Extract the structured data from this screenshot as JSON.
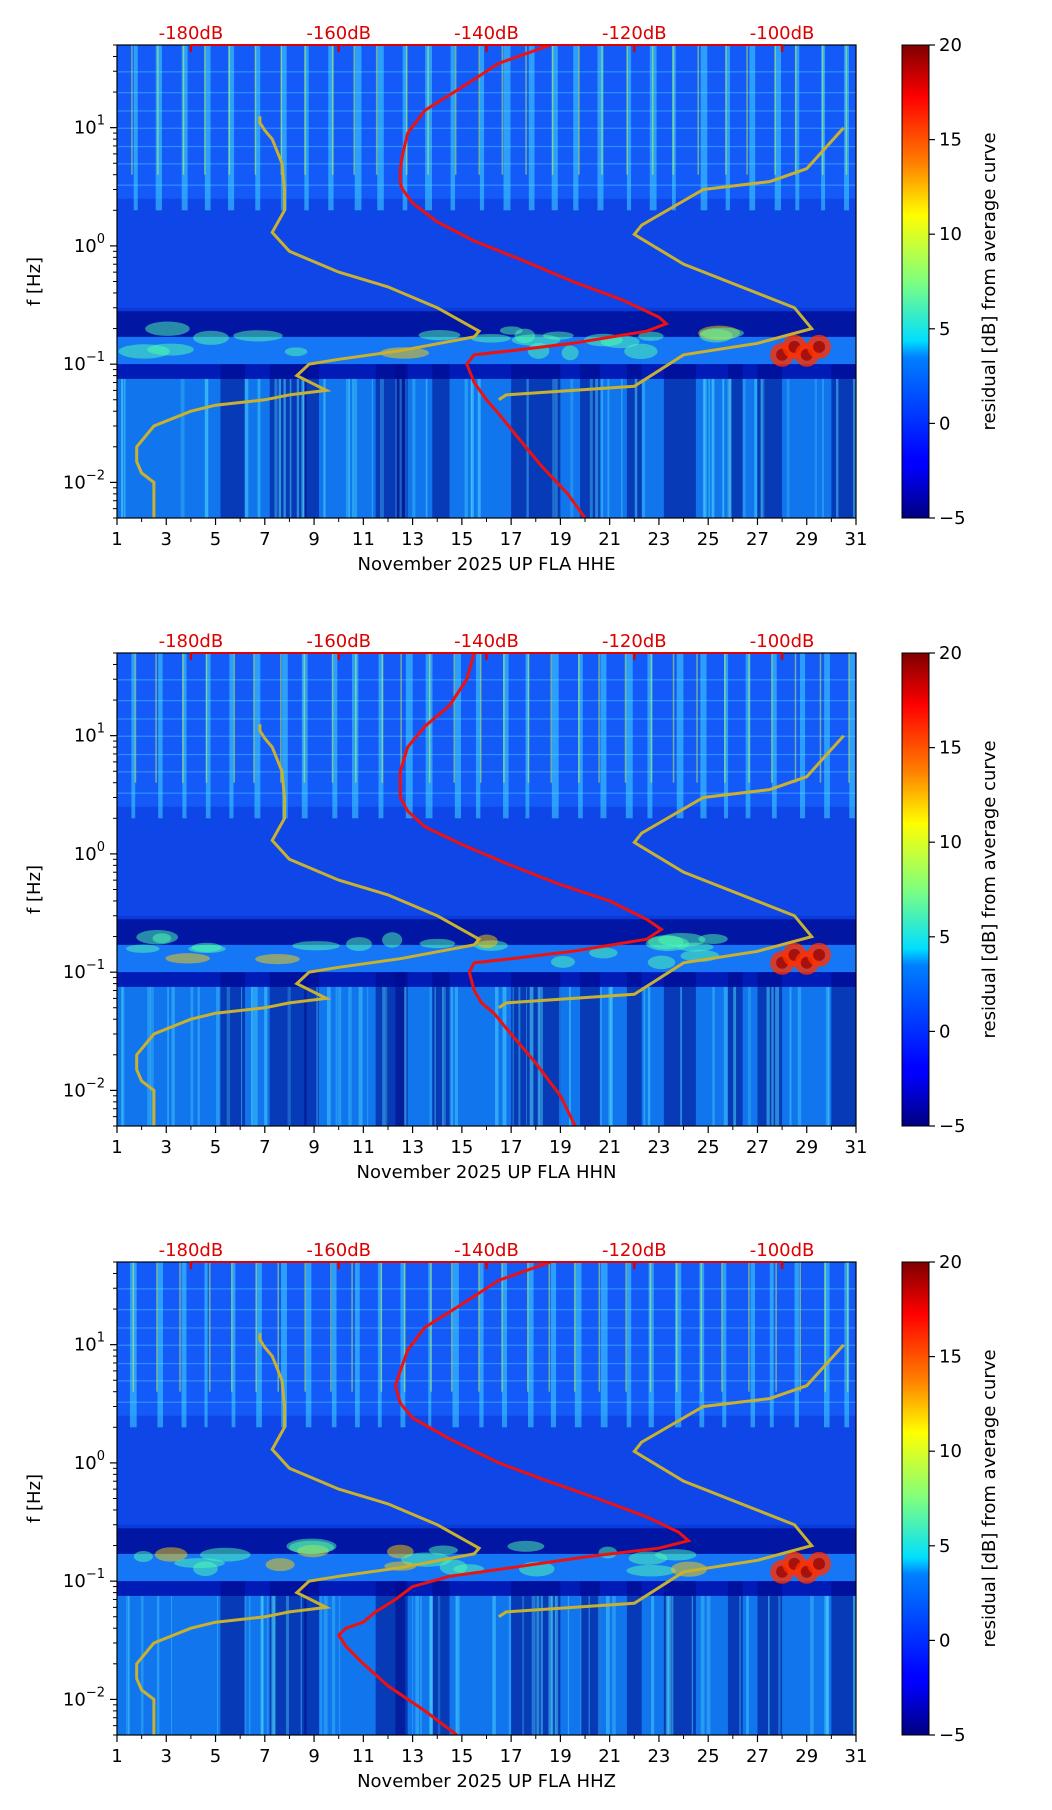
{
  "chart_data": [
    {
      "type": "heatmap",
      "xlabel": "November 2025 UP FLA  HHE",
      "ylabel": "f [Hz]",
      "x_ticks": [
        "1",
        "3",
        "5",
        "7",
        "9",
        "11",
        "13",
        "15",
        "17",
        "19",
        "21",
        "23",
        "25",
        "27",
        "29",
        "31"
      ],
      "xlim": [
        1,
        31
      ],
      "y_scale": "log",
      "ylim": [
        0.005,
        50
      ],
      "y_ticks": [
        {
          "value": 0.01,
          "base": "10",
          "exp": "−2"
        },
        {
          "value": 0.1,
          "base": "10",
          "exp": "−1"
        },
        {
          "value": 1,
          "base": "10",
          "exp": "0"
        },
        {
          "value": 10,
          "base": "10",
          "exp": "1"
        }
      ],
      "top_axis_labels": [
        "-180dB",
        "-160dB",
        "-140dB",
        "-120dB",
        "-100dB"
      ],
      "top_axis_positions": [
        4.0,
        10.0,
        16.0,
        22.0,
        28.0
      ],
      "colorbar": {
        "label": "residual [dB] from average curve",
        "min": -5,
        "max": 20,
        "ticks": [
          "20",
          "15",
          "10",
          "5",
          "0",
          "−5"
        ],
        "colormap": "jet"
      },
      "red_curve": [
        [
          18.6,
          50
        ],
        [
          16.5,
          35
        ],
        [
          15.0,
          22
        ],
        [
          13.5,
          14
        ],
        [
          12.8,
          9
        ],
        [
          12.6,
          6
        ],
        [
          12.5,
          4.5
        ],
        [
          12.5,
          3.4
        ],
        [
          12.6,
          3.0
        ],
        [
          13.0,
          2.3
        ],
        [
          14.0,
          1.6
        ],
        [
          15.5,
          1.1
        ],
        [
          17.5,
          0.75
        ],
        [
          19.5,
          0.5
        ],
        [
          21.5,
          0.35
        ],
        [
          23.0,
          0.25
        ],
        [
          23.3,
          0.22
        ],
        [
          22.5,
          0.19
        ],
        [
          19.5,
          0.15
        ],
        [
          17.0,
          0.13
        ],
        [
          15.5,
          0.12
        ],
        [
          15.2,
          0.1
        ],
        [
          15.5,
          0.07
        ],
        [
          16.0,
          0.05
        ],
        [
          16.5,
          0.038
        ],
        [
          17.2,
          0.025
        ],
        [
          18.2,
          0.014
        ],
        [
          19.3,
          0.008
        ],
        [
          20.0,
          0.005
        ]
      ],
      "yellow_curve": [
        [
          2.5,
          0.005
        ],
        [
          2.5,
          0.01
        ],
        [
          2.0,
          0.012
        ],
        [
          1.8,
          0.015
        ],
        [
          1.8,
          0.02
        ],
        [
          2.5,
          0.03
        ],
        [
          4.0,
          0.04
        ],
        [
          5.0,
          0.045
        ],
        [
          7.0,
          0.05
        ],
        [
          8.0,
          0.055
        ],
        [
          9.5,
          0.06
        ],
        [
          8.3,
          0.08
        ],
        [
          8.8,
          0.1
        ],
        [
          10.0,
          0.11
        ],
        [
          12.5,
          0.13
        ],
        [
          15.5,
          0.17
        ],
        [
          15.7,
          0.19
        ],
        [
          14.0,
          0.3
        ],
        [
          12.0,
          0.45
        ],
        [
          10.0,
          0.6
        ],
        [
          8.0,
          0.9
        ],
        [
          7.3,
          1.3
        ],
        [
          7.8,
          2
        ],
        [
          7.8,
          3
        ],
        [
          7.7,
          5
        ],
        [
          7.3,
          8
        ],
        [
          7.0,
          9.5
        ],
        [
          6.8,
          11
        ],
        [
          6.8,
          12.5
        ]
      ],
      "yellow_curve_b": [
        [
          16.5,
          0.05
        ],
        [
          16.8,
          0.055
        ],
        [
          22.0,
          0.065
        ],
        [
          24.0,
          0.12
        ],
        [
          27.0,
          0.15
        ],
        [
          29.2,
          0.2
        ],
        [
          28.5,
          0.3
        ],
        [
          24.0,
          0.7
        ],
        [
          22.0,
          1.25
        ],
        [
          22.3,
          1.5
        ],
        [
          24.8,
          3.0
        ],
        [
          27.5,
          3.5
        ],
        [
          29.0,
          4.5
        ],
        [
          30.5,
          10
        ]
      ],
      "bright_spots_days": [
        28.0,
        28.5,
        29.0,
        29.5
      ]
    },
    {
      "type": "heatmap",
      "xlabel": "November 2025 UP FLA  HHN",
      "ylabel": "f [Hz]",
      "x_ticks": [
        "1",
        "3",
        "5",
        "7",
        "9",
        "11",
        "13",
        "15",
        "17",
        "19",
        "21",
        "23",
        "25",
        "27",
        "29",
        "31"
      ],
      "xlim": [
        1,
        31
      ],
      "y_scale": "log",
      "ylim": [
        0.005,
        50
      ],
      "y_ticks": [
        {
          "value": 0.01,
          "base": "10",
          "exp": "−2"
        },
        {
          "value": 0.1,
          "base": "10",
          "exp": "−1"
        },
        {
          "value": 1,
          "base": "10",
          "exp": "0"
        },
        {
          "value": 10,
          "base": "10",
          "exp": "1"
        }
      ],
      "top_axis_labels": [
        "-180dB",
        "-160dB",
        "-140dB",
        "-120dB",
        "-100dB"
      ],
      "top_axis_positions": [
        4.0,
        10.0,
        16.0,
        22.0,
        28.0
      ],
      "colorbar": {
        "label": "residual [dB] from average curve",
        "min": -5,
        "max": 20,
        "ticks": [
          "20",
          "15",
          "10",
          "5",
          "0",
          "−5"
        ],
        "colormap": "jet"
      },
      "red_curve": [
        [
          15.5,
          50
        ],
        [
          15.2,
          30
        ],
        [
          14.5,
          18
        ],
        [
          13.5,
          12
        ],
        [
          12.8,
          8
        ],
        [
          12.5,
          5
        ],
        [
          12.5,
          3
        ],
        [
          12.8,
          2.3
        ],
        [
          13.5,
          1.7
        ],
        [
          15.0,
          1.2
        ],
        [
          17.0,
          0.8
        ],
        [
          19.0,
          0.55
        ],
        [
          21.0,
          0.4
        ],
        [
          22.5,
          0.28
        ],
        [
          23.1,
          0.23
        ],
        [
          22.5,
          0.19
        ],
        [
          19.5,
          0.15
        ],
        [
          17.0,
          0.13
        ],
        [
          15.5,
          0.12
        ],
        [
          15.3,
          0.1
        ],
        [
          15.5,
          0.07
        ],
        [
          15.8,
          0.055
        ],
        [
          16.3,
          0.045
        ],
        [
          17.0,
          0.03
        ],
        [
          18.0,
          0.017
        ],
        [
          19.0,
          0.009
        ],
        [
          19.6,
          0.005
        ]
      ],
      "yellow_curve": [
        [
          2.5,
          0.005
        ],
        [
          2.5,
          0.01
        ],
        [
          2.0,
          0.012
        ],
        [
          1.8,
          0.015
        ],
        [
          1.8,
          0.02
        ],
        [
          2.5,
          0.03
        ],
        [
          4.0,
          0.04
        ],
        [
          5.0,
          0.045
        ],
        [
          7.0,
          0.05
        ],
        [
          8.0,
          0.055
        ],
        [
          9.5,
          0.06
        ],
        [
          8.3,
          0.08
        ],
        [
          8.8,
          0.1
        ],
        [
          10.0,
          0.11
        ],
        [
          12.5,
          0.13
        ],
        [
          15.5,
          0.17
        ],
        [
          15.7,
          0.19
        ],
        [
          14.0,
          0.3
        ],
        [
          12.0,
          0.45
        ],
        [
          10.0,
          0.6
        ],
        [
          8.0,
          0.9
        ],
        [
          7.3,
          1.3
        ],
        [
          7.8,
          2
        ],
        [
          7.8,
          3
        ],
        [
          7.7,
          5
        ],
        [
          7.3,
          8
        ],
        [
          7.0,
          9.5
        ],
        [
          6.8,
          11
        ],
        [
          6.8,
          12.5
        ]
      ],
      "yellow_curve_b": [
        [
          16.5,
          0.05
        ],
        [
          16.8,
          0.055
        ],
        [
          22.0,
          0.065
        ],
        [
          24.0,
          0.12
        ],
        [
          27.0,
          0.15
        ],
        [
          29.2,
          0.2
        ],
        [
          28.5,
          0.3
        ],
        [
          24.0,
          0.7
        ],
        [
          22.0,
          1.25
        ],
        [
          22.3,
          1.5
        ],
        [
          24.8,
          3.0
        ],
        [
          27.5,
          3.5
        ],
        [
          29.0,
          4.5
        ],
        [
          30.5,
          10
        ]
      ],
      "bright_spots_days": [
        28.0,
        28.5,
        29.0,
        29.5
      ]
    },
    {
      "type": "heatmap",
      "xlabel": "November 2025 UP FLA  HHZ",
      "ylabel": "f [Hz]",
      "x_ticks": [
        "1",
        "3",
        "5",
        "7",
        "9",
        "11",
        "13",
        "15",
        "17",
        "19",
        "21",
        "23",
        "25",
        "27",
        "29",
        "31"
      ],
      "xlim": [
        1,
        31
      ],
      "y_scale": "log",
      "ylim": [
        0.005,
        50
      ],
      "y_ticks": [
        {
          "value": 0.01,
          "base": "10",
          "exp": "−2"
        },
        {
          "value": 0.1,
          "base": "10",
          "exp": "−1"
        },
        {
          "value": 1,
          "base": "10",
          "exp": "0"
        },
        {
          "value": 10,
          "base": "10",
          "exp": "1"
        }
      ],
      "top_axis_labels": [
        "-180dB",
        "-160dB",
        "-140dB",
        "-120dB",
        "-100dB"
      ],
      "top_axis_positions": [
        4.0,
        10.0,
        16.0,
        22.0,
        28.0
      ],
      "colorbar": {
        "label": "residual [dB] from average curve",
        "min": -5,
        "max": 20,
        "ticks": [
          "20",
          "15",
          "10",
          "5",
          "0",
          "−5"
        ],
        "colormap": "jet"
      },
      "red_curve": [
        [
          18.6,
          50
        ],
        [
          16.5,
          35
        ],
        [
          15.0,
          22
        ],
        [
          13.5,
          14
        ],
        [
          12.8,
          9
        ],
        [
          12.5,
          6
        ],
        [
          12.3,
          4.5
        ],
        [
          12.5,
          3.2
        ],
        [
          13.0,
          2.4
        ],
        [
          14.5,
          1.6
        ],
        [
          16.5,
          1.0
        ],
        [
          18.5,
          0.7
        ],
        [
          20.5,
          0.5
        ],
        [
          22.5,
          0.35
        ],
        [
          23.8,
          0.26
        ],
        [
          24.2,
          0.22
        ],
        [
          23.0,
          0.19
        ],
        [
          20.0,
          0.16
        ],
        [
          17.0,
          0.13
        ],
        [
          14.5,
          0.11
        ],
        [
          13.0,
          0.09
        ],
        [
          12.3,
          0.07
        ],
        [
          11.5,
          0.055
        ],
        [
          11.0,
          0.045
        ],
        [
          10.3,
          0.04
        ],
        [
          10.0,
          0.035
        ],
        [
          10.3,
          0.028
        ],
        [
          11.0,
          0.02
        ],
        [
          12.0,
          0.013
        ],
        [
          13.5,
          0.008
        ],
        [
          14.8,
          0.005
        ]
      ],
      "yellow_curve": [
        [
          2.5,
          0.005
        ],
        [
          2.5,
          0.01
        ],
        [
          2.0,
          0.012
        ],
        [
          1.8,
          0.015
        ],
        [
          1.8,
          0.02
        ],
        [
          2.5,
          0.03
        ],
        [
          4.0,
          0.04
        ],
        [
          5.0,
          0.045
        ],
        [
          7.0,
          0.05
        ],
        [
          8.0,
          0.055
        ],
        [
          9.5,
          0.06
        ],
        [
          8.3,
          0.08
        ],
        [
          8.8,
          0.1
        ],
        [
          10.0,
          0.11
        ],
        [
          12.5,
          0.13
        ],
        [
          15.5,
          0.17
        ],
        [
          15.7,
          0.19
        ],
        [
          14.0,
          0.3
        ],
        [
          12.0,
          0.45
        ],
        [
          10.0,
          0.6
        ],
        [
          8.0,
          0.9
        ],
        [
          7.3,
          1.3
        ],
        [
          7.8,
          2
        ],
        [
          7.8,
          3
        ],
        [
          7.7,
          5
        ],
        [
          7.3,
          8
        ],
        [
          7.0,
          9.5
        ],
        [
          6.8,
          11
        ],
        [
          6.8,
          12.5
        ]
      ],
      "yellow_curve_b": [
        [
          16.5,
          0.05
        ],
        [
          16.8,
          0.055
        ],
        [
          22.0,
          0.065
        ],
        [
          24.0,
          0.12
        ],
        [
          27.0,
          0.15
        ],
        [
          29.2,
          0.2
        ],
        [
          28.5,
          0.3
        ],
        [
          24.0,
          0.7
        ],
        [
          22.0,
          1.25
        ],
        [
          22.3,
          1.5
        ],
        [
          24.8,
          3.0
        ],
        [
          27.5,
          3.5
        ],
        [
          29.0,
          4.5
        ],
        [
          30.5,
          10
        ]
      ],
      "bright_spots_days": [
        28.0,
        28.5,
        29.0,
        29.5
      ]
    }
  ],
  "colors": {
    "red_curve": "#ee1111",
    "yellow_curve": "#c8b030",
    "top_labels": "#dd0000",
    "background_low": "#00007f",
    "noise_mid": "#1060ff"
  }
}
